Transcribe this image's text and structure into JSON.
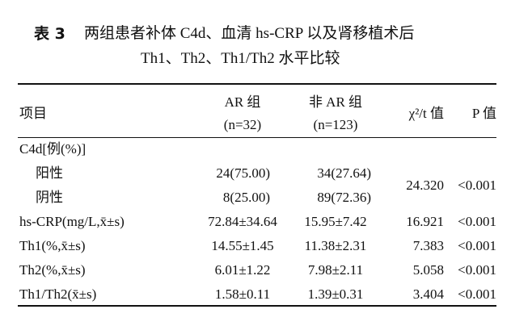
{
  "title": {
    "label": "表 3",
    "line1": "两组患者补体 C4d、血清 hs-CRP 以及肾移植术后",
    "line2": "Th1、Th2、Th1/Th2 水平比较"
  },
  "table": {
    "header": {
      "item": "项目",
      "group_ar": "AR 组",
      "n_ar": "(n=32)",
      "group_non_ar": "非 AR 组",
      "n_non_ar": "(n=123)",
      "stat": "χ²/t 值",
      "p": "P 值"
    },
    "rows": [
      {
        "item": "C4d[例(%)]",
        "stat": "24.320",
        "p": "<0.001",
        "subrows": [
          {
            "item": "阳性",
            "ar": "24(75.00)",
            "non_ar": "34(27.64)"
          },
          {
            "item": "阴性",
            "ar": "8(25.00)",
            "non_ar": "89(72.36)"
          }
        ]
      },
      {
        "item": "hs-CRP(mg/L,x̄±s)",
        "ar": "72.84±34.64",
        "non_ar": "15.95±7.42",
        "stat": "16.921",
        "p": "<0.001"
      },
      {
        "item": "Th1(%,x̄±s)",
        "ar": "14.55±1.45",
        "non_ar": "11.38±2.31",
        "stat": "7.383",
        "p": "<0.001"
      },
      {
        "item": "Th2(%,x̄±s)",
        "ar": "6.01±1.22",
        "non_ar": "7.98±2.11",
        "stat": "5.058",
        "p": "<0.001"
      },
      {
        "item": "Th1/Th2(x̄±s)",
        "ar": "1.58±0.11",
        "non_ar": "1.39±0.31",
        "stat": "3.404",
        "p": "<0.001"
      }
    ]
  }
}
